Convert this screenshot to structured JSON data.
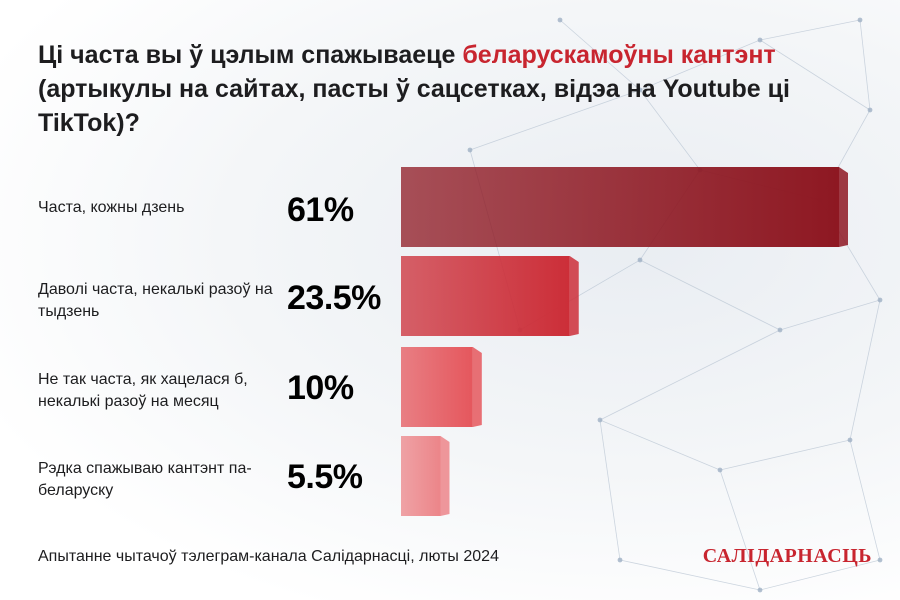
{
  "title": {
    "part1": "Ці часта вы ў цэлым спажываеце ",
    "highlight": "беларускамоўны кантэнт",
    "part2": " (артыкулы на сайтах, пасты ў сацсетках, відэа на Youtube ці TikTok)?",
    "highlight_color": "#c8252f"
  },
  "chart_data": {
    "type": "bar",
    "orientation": "horizontal",
    "categories": [
      "Часта, кожны дзень",
      "Даволі часта, некалькі разоў на тыдзень",
      "Не так часта, як хацелася б, некалькі разоў на месяц",
      "Рэдка спажываю кантэнт па-беларуску"
    ],
    "values": [
      61,
      23.5,
      10,
      5.5
    ],
    "labels": [
      "61%",
      "23.5%",
      "10%",
      "5.5%"
    ],
    "colors": [
      "#8e1822",
      "#cc2e38",
      "#e5575d",
      "#ec8589"
    ],
    "xlim": [
      0,
      61
    ],
    "grid": false
  },
  "footer": "Апытанне чытачоў тэлеграм-канала Салідарнасці, люты 2024",
  "brand": "САЛІДАРНАСЦЬ"
}
